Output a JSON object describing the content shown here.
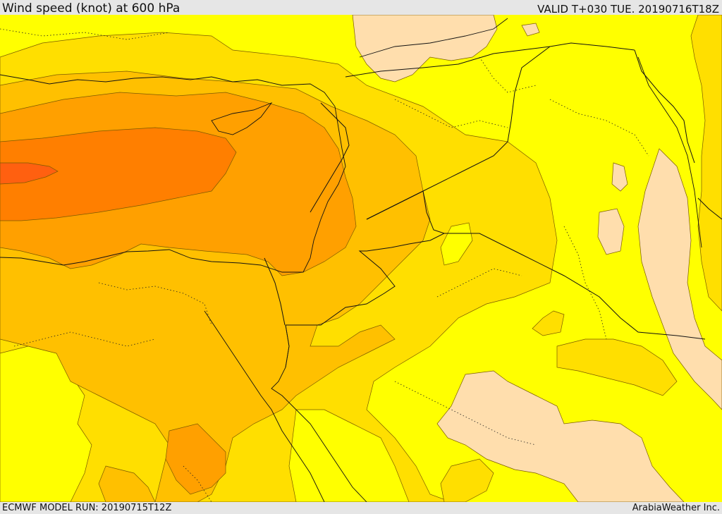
{
  "header": {
    "title": "Wind speed (knot) at 600 hPa",
    "valid": "VALID T+030 TUE. 20190716T18Z"
  },
  "footer": {
    "model_run": "ECMWF MODEL RUN: 20190715T12Z",
    "credit": "ArabiaWeather Inc."
  },
  "colors": {
    "level_lowest": "#ffdead",
    "level_low": "#ffff00",
    "level_mid_low": "#ffdf00",
    "level_mid": "#ffc000",
    "level_mid_high": "#ffa000",
    "level_high": "#ff7f00",
    "level_highest": "#ff6010"
  }
}
